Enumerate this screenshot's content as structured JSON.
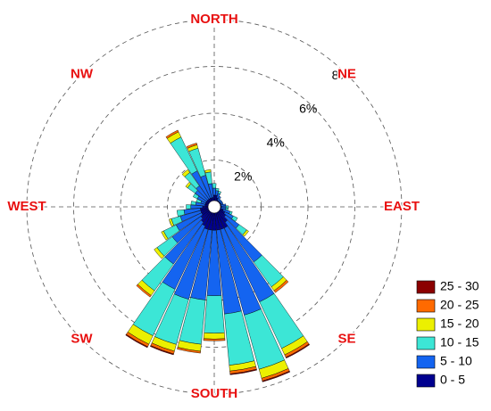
{
  "chart_data": {
    "type": "wind-rose",
    "compass": [
      "NORTH",
      "NE",
      "EAST",
      "SE",
      "SOUTH",
      "SW",
      "WEST",
      "NW"
    ],
    "rlim": [
      0,
      8
    ],
    "rticks": [
      {
        "value": 2,
        "label": "2%"
      },
      {
        "value": 4,
        "label": "4%"
      },
      {
        "value": 6,
        "label": "6%"
      },
      {
        "value": 8,
        "label": "8%"
      }
    ],
    "grid": true,
    "legend": "bottom-right",
    "series": [
      {
        "name": "0 - 5",
        "color": "#00008f",
        "values": [
          0.5,
          0.5,
          0.4,
          0.3,
          0.3,
          0.3,
          0.3,
          0.3,
          0.3,
          0.3,
          0.3,
          0.4,
          0.5,
          0.6,
          0.8,
          1.0,
          1.0,
          1.0,
          1.0,
          1.0,
          1.0,
          0.9,
          0.8,
          0.7,
          0.6,
          0.6,
          0.6,
          0.5,
          0.4,
          0.4,
          0.4,
          0.4,
          0.4,
          0.4,
          0.4,
          0.4
        ]
      },
      {
        "name": "5 - 10",
        "color": "#1464f0",
        "values": [
          0.3,
          0.2,
          0.2,
          0.2,
          0.1,
          0.1,
          0.1,
          0.1,
          0.2,
          0.2,
          0.2,
          0.3,
          0.4,
          0.7,
          2.1,
          3.5,
          3.8,
          3.6,
          2.8,
          3.0,
          3.1,
          3.0,
          2.2,
          1.5,
          1.2,
          0.9,
          0.7,
          0.5,
          0.4,
          0.2,
          0.4,
          0.6,
          0.7,
          1.3,
          1.0,
          0.6
        ]
      },
      {
        "name": "10 - 15",
        "color": "#3ce6d6",
        "values": [
          0.2,
          0.1,
          0.1,
          0,
          0,
          0,
          0,
          0,
          0,
          0.1,
          0.1,
          0.1,
          0.2,
          0.4,
          1.3,
          2.2,
          2.4,
          2.2,
          1.6,
          1.9,
          2.0,
          2.2,
          1.4,
          0.8,
          0.6,
          0.4,
          0.3,
          0.2,
          0.2,
          0.2,
          0.2,
          0.4,
          0.7,
          1.6,
          1.2,
          0.5
        ]
      },
      {
        "name": "15 - 20",
        "color": "#ecf000",
        "values": [
          0,
          0,
          0,
          0,
          0,
          0,
          0,
          0,
          0,
          0,
          0,
          0,
          0,
          0.1,
          0.2,
          0.3,
          0.4,
          0.25,
          0.25,
          0.3,
          0.3,
          0.4,
          0.25,
          0.15,
          0.1,
          0.1,
          0,
          0,
          0,
          0,
          0,
          0.1,
          0.15,
          0.25,
          0.15,
          0.1
        ]
      },
      {
        "name": "20 - 25",
        "color": "#ff6a00",
        "values": [
          0,
          0,
          0,
          0,
          0,
          0,
          0,
          0,
          0,
          0,
          0,
          0,
          0,
          0,
          0.1,
          0.12,
          0.12,
          0.12,
          0.08,
          0.08,
          0.12,
          0.12,
          0.08,
          0,
          0,
          0,
          0,
          0,
          0,
          0,
          0,
          0,
          0,
          0.08,
          0.08,
          0
        ]
      },
      {
        "name": "25 - 30",
        "color": "#8b0000",
        "values": [
          0,
          0,
          0,
          0,
          0,
          0,
          0,
          0,
          0,
          0,
          0,
          0,
          0,
          0,
          0,
          0.04,
          0.04,
          0.04,
          0,
          0,
          0.04,
          0.04,
          0,
          0,
          0,
          0,
          0,
          0,
          0,
          0,
          0,
          0,
          0,
          0,
          0,
          0
        ]
      }
    ]
  }
}
